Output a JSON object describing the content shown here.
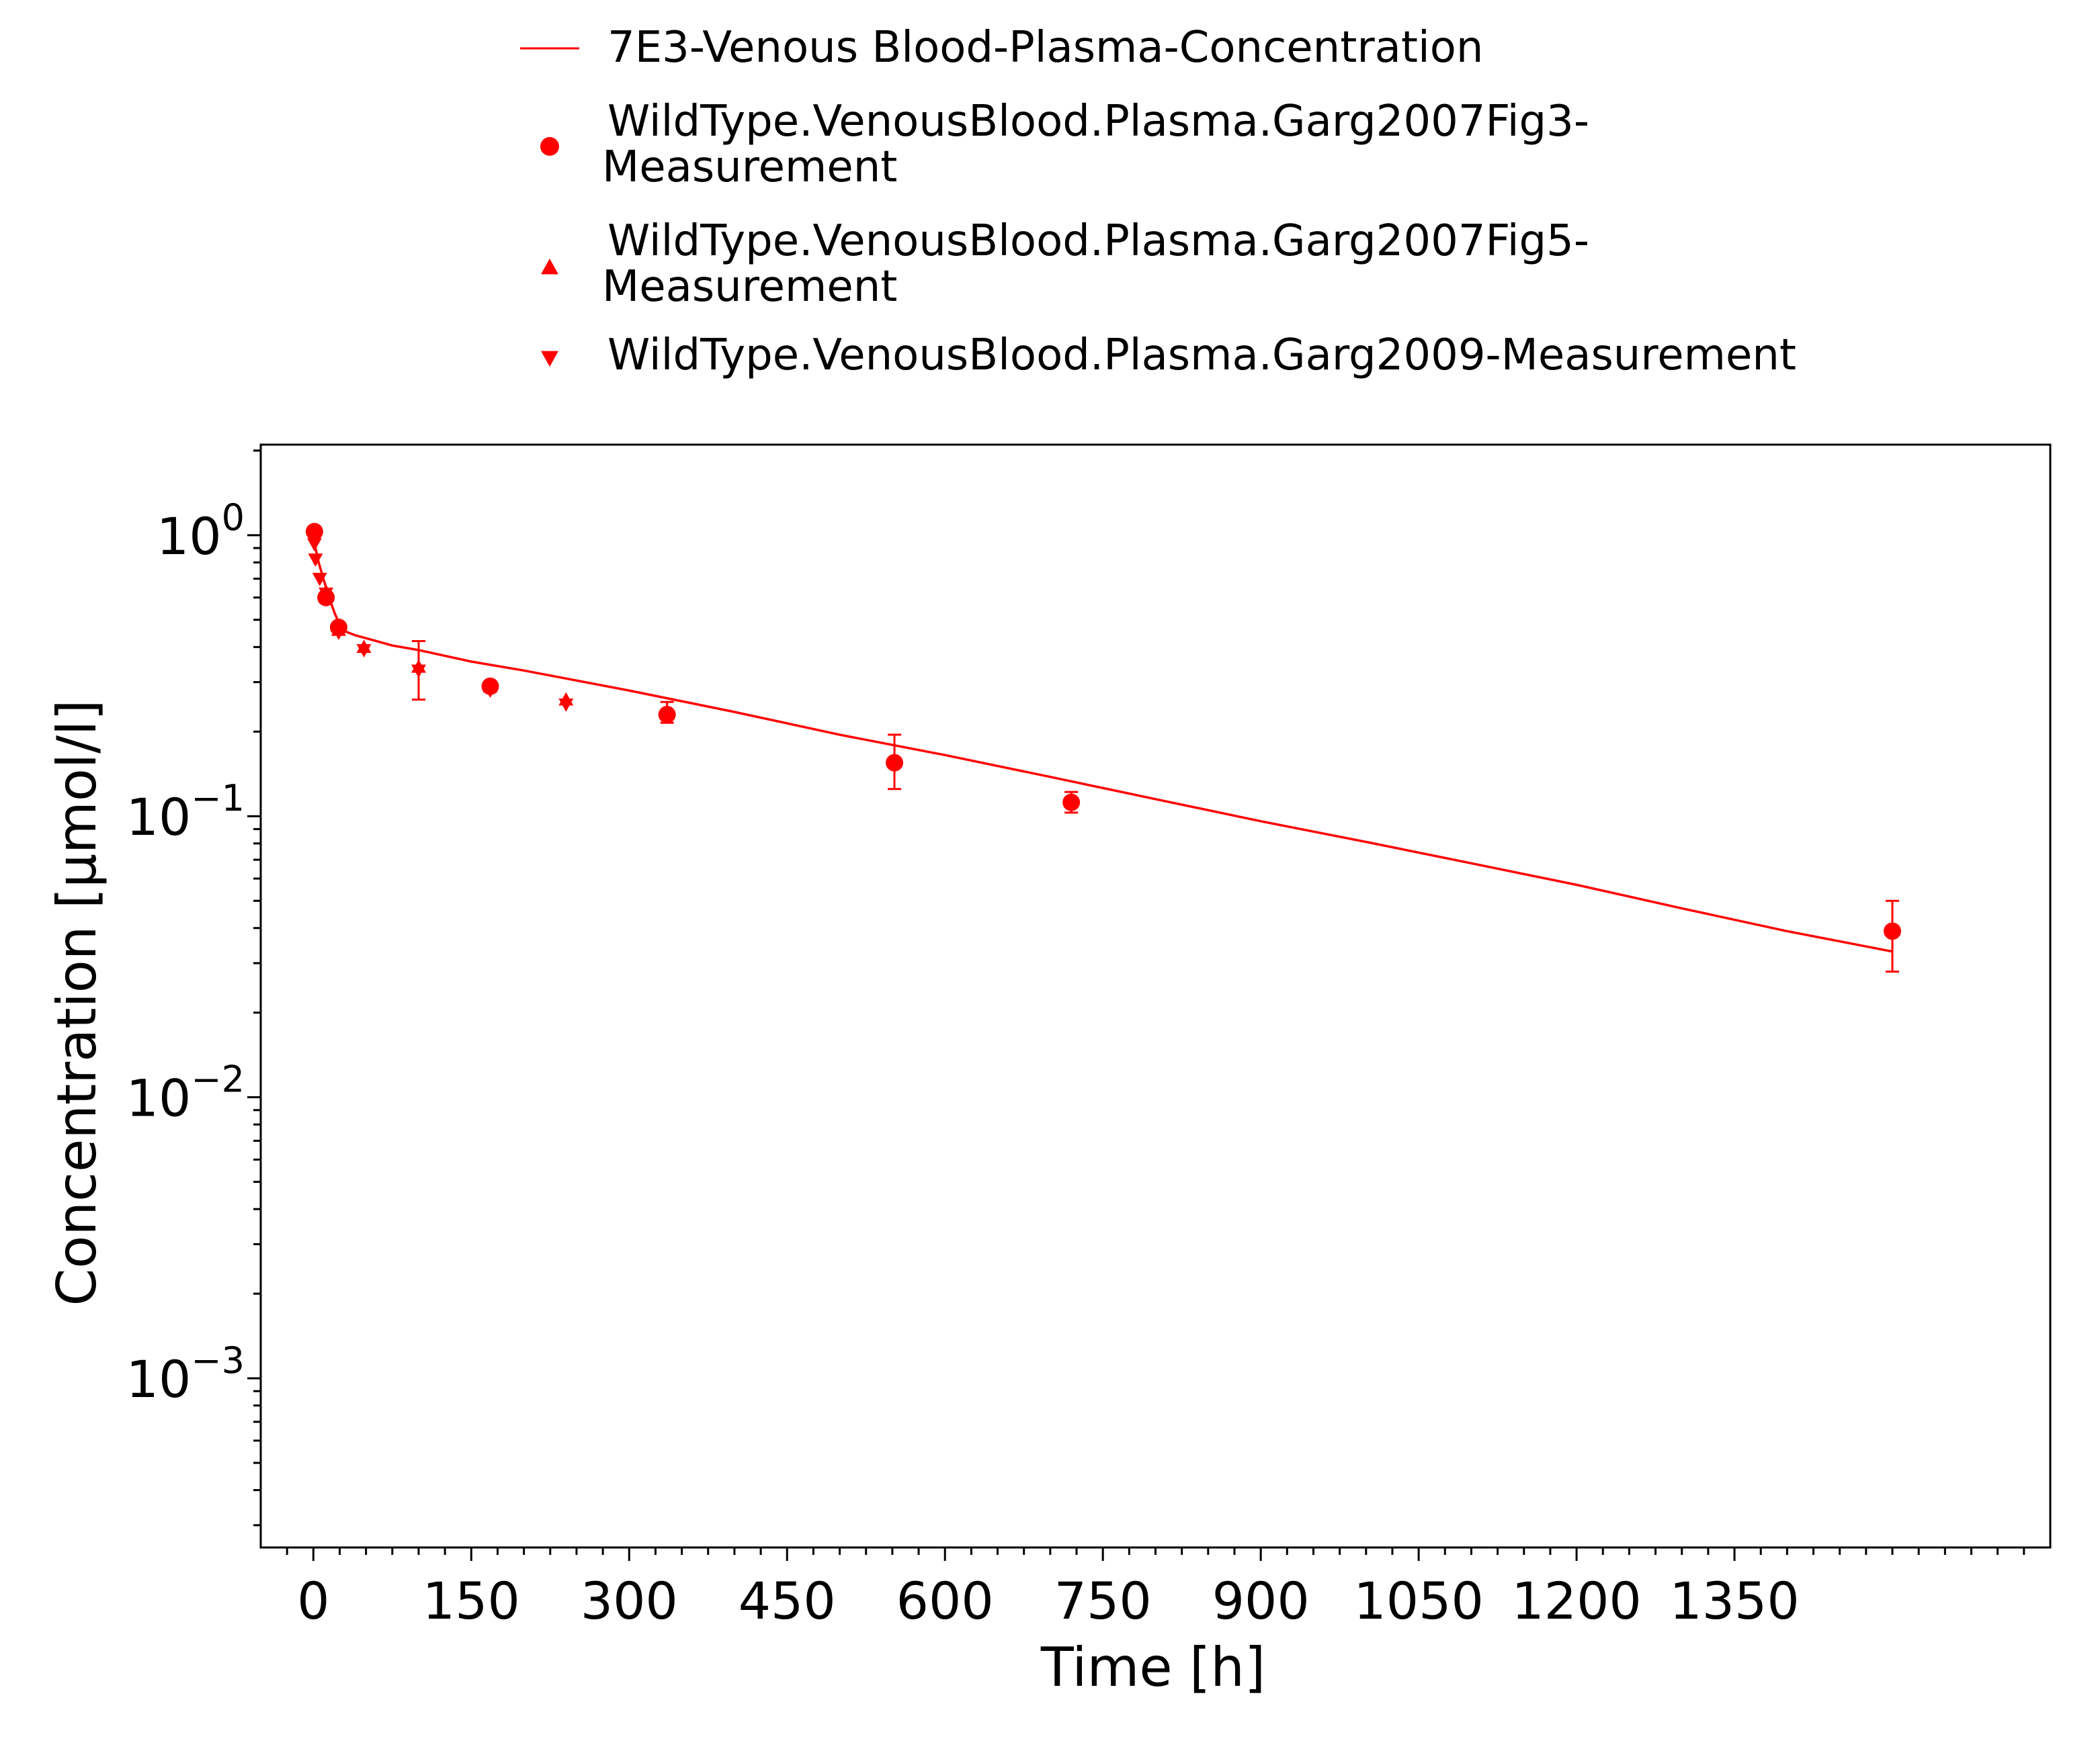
{
  "chart_data": {
    "type": "scatter",
    "title": "",
    "xlabel": "Time [h]",
    "ylabel": "Concentration [µmol/l]",
    "xlim": [
      -50,
      1650
    ],
    "ylim": [
      0.00025,
      2.1
    ],
    "yscale": "log",
    "grid": false,
    "legend_position": "top",
    "x_ticks": [
      0,
      150,
      300,
      450,
      600,
      750,
      900,
      1050,
      1200,
      1350
    ],
    "x_tick_labels": [
      "0",
      "150",
      "300",
      "450",
      "600",
      "750",
      "900",
      "1050",
      "1200",
      "1350"
    ],
    "y_ticks": [
      {
        "value": 1,
        "base": "10",
        "exp": "0"
      },
      {
        "value": 0.1,
        "base": "10",
        "exp": "−1"
      },
      {
        "value": 0.01,
        "base": "10",
        "exp": "−2"
      },
      {
        "value": 0.001,
        "base": "10",
        "exp": "−3"
      }
    ],
    "color": "#ff0000",
    "series": [
      {
        "name": "7E3-Venous Blood-Plasma-Concentration",
        "kind": "line",
        "x": [
          0,
          2,
          5,
          10,
          15,
          20,
          25,
          30,
          40,
          50,
          75,
          100,
          150,
          200,
          300,
          400,
          500,
          600,
          700,
          800,
          900,
          1000,
          1100,
          1200,
          1300,
          1400,
          1500
        ],
        "y": [
          1.0,
          0.9,
          0.8,
          0.69,
          0.6,
          0.53,
          0.48,
          0.455,
          0.44,
          0.43,
          0.405,
          0.39,
          0.355,
          0.33,
          0.28,
          0.235,
          0.195,
          0.165,
          0.138,
          0.115,
          0.096,
          0.081,
          0.068,
          0.057,
          0.047,
          0.039,
          0.033
        ]
      },
      {
        "name": "WildType.VenousBlood.Plasma.Garg2007Fig3-Measurement",
        "kind": "circle",
        "x": [
          1,
          12,
          24,
          168,
          336,
          552,
          720,
          1500
        ],
        "y": [
          1.03,
          0.6,
          0.47,
          0.29,
          0.23,
          0.155,
          0.112,
          0.039
        ],
        "err_low": [
          null,
          null,
          null,
          null,
          0.215,
          0.125,
          0.103,
          0.028
        ],
        "err_high": [
          null,
          null,
          null,
          null,
          0.255,
          0.195,
          0.122,
          0.05
        ]
      },
      {
        "name": "WildType.VenousBlood.Plasma.Garg2007Fig5-Measurement",
        "kind": "triangle-up",
        "x": [
          12,
          24,
          48,
          100,
          168,
          240
        ],
        "y": [
          0.63,
          0.46,
          0.4,
          0.34,
          0.29,
          0.26
        ],
        "err_low": [
          null,
          null,
          null,
          0.26,
          null,
          null
        ],
        "err_high": [
          null,
          null,
          null,
          0.42,
          null,
          null
        ]
      },
      {
        "name": "WildType.VenousBlood.Plasma.Garg2009-Measurement",
        "kind": "triangle-down",
        "x": [
          0.5,
          1,
          2,
          6,
          12,
          24,
          48,
          100,
          168,
          240
        ],
        "y": [
          0.98,
          0.93,
          0.82,
          0.7,
          0.62,
          0.45,
          0.39,
          0.33,
          0.28,
          0.25
        ]
      }
    ]
  }
}
